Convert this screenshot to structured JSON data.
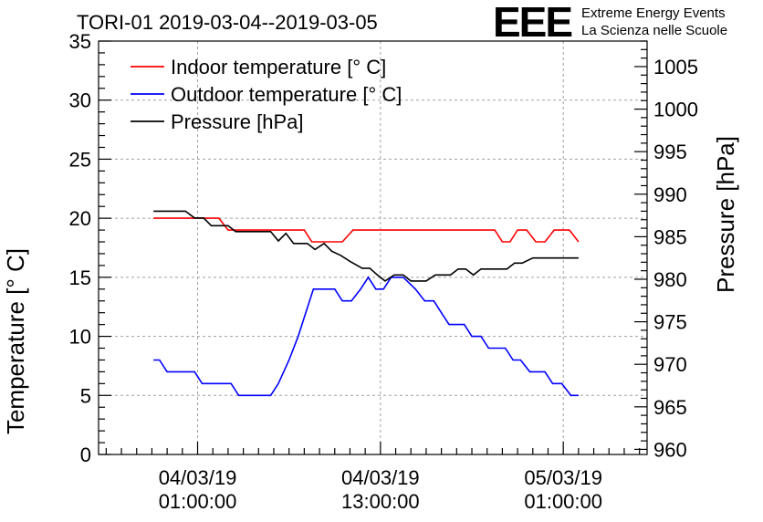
{
  "chart_data": {
    "type": "line",
    "title": "TORI-01 2019-03-04--2019-03-05",
    "logo": {
      "mark": "EEE",
      "line1": "Extreme Energy Events",
      "line2": "La Scienza nelle Scuole"
    },
    "ylabel": "Temperature [° C]",
    "y2label": "Pressure [hPa]",
    "ylim": [
      0,
      35
    ],
    "y2lim": [
      959.4,
      1008
    ],
    "xlim_hours": [
      -5.5,
      30.5
    ],
    "grid": true,
    "legend_position": "top-left",
    "yticks": [
      "0",
      "5",
      "10",
      "15",
      "20",
      "25",
      "30",
      "35"
    ],
    "y2ticks": [
      "960",
      "965",
      "970",
      "975",
      "980",
      "985",
      "990",
      "995",
      "1000",
      "1005"
    ],
    "xticks": [
      {
        "hour": 1,
        "line1": "04/03/19",
        "line2": "01:00:00"
      },
      {
        "hour": 13,
        "line1": "04/03/19",
        "line2": "13:00:00"
      },
      {
        "hour": 25,
        "line1": "05/03/19",
        "line2": "01:00:00"
      }
    ],
    "series": [
      {
        "name": "Indoor temperature [° C]",
        "color": "#ff0000",
        "axis": "left",
        "points": [
          [
            -1.9,
            20
          ],
          [
            1.7,
            20
          ],
          [
            2.4,
            20
          ],
          [
            3.0,
            19
          ],
          [
            8.0,
            19
          ],
          [
            8.5,
            18
          ],
          [
            10.5,
            18
          ],
          [
            11.2,
            19
          ],
          [
            20.5,
            19
          ],
          [
            21.0,
            18
          ],
          [
            21.5,
            18
          ],
          [
            22.0,
            19
          ],
          [
            22.6,
            19
          ],
          [
            23.2,
            18
          ],
          [
            23.8,
            18
          ],
          [
            24.4,
            19
          ],
          [
            25.4,
            19
          ],
          [
            26.0,
            18
          ]
        ]
      },
      {
        "name": "Outdoor temperature [° C]",
        "color": "#0000ff",
        "axis": "left",
        "points": [
          [
            -1.9,
            8
          ],
          [
            -1.5,
            8
          ],
          [
            -1.0,
            7
          ],
          [
            0.8,
            7
          ],
          [
            1.3,
            6
          ],
          [
            3.2,
            6
          ],
          [
            3.7,
            5
          ],
          [
            5.8,
            5
          ],
          [
            6.3,
            6
          ],
          [
            7.0,
            8
          ],
          [
            7.6,
            10
          ],
          [
            8.1,
            12
          ],
          [
            8.6,
            14
          ],
          [
            10.0,
            14
          ],
          [
            10.5,
            13
          ],
          [
            11.1,
            13
          ],
          [
            11.7,
            14
          ],
          [
            12.2,
            15
          ],
          [
            12.7,
            14
          ],
          [
            13.2,
            14
          ],
          [
            13.7,
            15
          ],
          [
            14.5,
            15
          ],
          [
            15.3,
            14
          ],
          [
            15.9,
            13
          ],
          [
            16.5,
            13
          ],
          [
            17.0,
            12
          ],
          [
            17.5,
            11
          ],
          [
            18.5,
            11
          ],
          [
            19.0,
            10
          ],
          [
            19.6,
            10
          ],
          [
            20.1,
            9
          ],
          [
            21.2,
            9
          ],
          [
            21.7,
            8
          ],
          [
            22.2,
            8
          ],
          [
            22.8,
            7
          ],
          [
            23.8,
            7
          ],
          [
            24.3,
            6
          ],
          [
            24.9,
            6
          ],
          [
            25.5,
            5
          ],
          [
            26.0,
            5
          ]
        ]
      },
      {
        "name": "Pressure [hPa]",
        "color": "#000000",
        "axis": "right",
        "points": [
          [
            -1.9,
            988
          ],
          [
            0.2,
            988
          ],
          [
            0.8,
            987.2
          ],
          [
            1.4,
            987.2
          ],
          [
            1.9,
            986.3
          ],
          [
            3.0,
            986.3
          ],
          [
            3.5,
            985.6
          ],
          [
            5.8,
            985.6
          ],
          [
            6.3,
            984.5
          ],
          [
            6.8,
            985.4
          ],
          [
            7.3,
            984.2
          ],
          [
            8.2,
            984.2
          ],
          [
            8.7,
            983.5
          ],
          [
            9.3,
            984.2
          ],
          [
            9.8,
            983.3
          ],
          [
            10.4,
            982.8
          ],
          [
            11.0,
            982.1
          ],
          [
            11.8,
            981.3
          ],
          [
            12.3,
            981.3
          ],
          [
            12.8,
            980.5
          ],
          [
            13.3,
            979.8
          ],
          [
            13.9,
            980.5
          ],
          [
            14.5,
            980.5
          ],
          [
            15.0,
            979.8
          ],
          [
            16.0,
            979.8
          ],
          [
            16.6,
            980.5
          ],
          [
            17.6,
            980.5
          ],
          [
            18.1,
            981.2
          ],
          [
            18.6,
            981.2
          ],
          [
            19.1,
            980.5
          ],
          [
            19.6,
            981.2
          ],
          [
            20.2,
            981.2
          ],
          [
            21.3,
            981.2
          ],
          [
            21.8,
            981.9
          ],
          [
            22.3,
            981.9
          ],
          [
            23.0,
            982.5
          ],
          [
            26.0,
            982.5
          ]
        ]
      }
    ]
  }
}
